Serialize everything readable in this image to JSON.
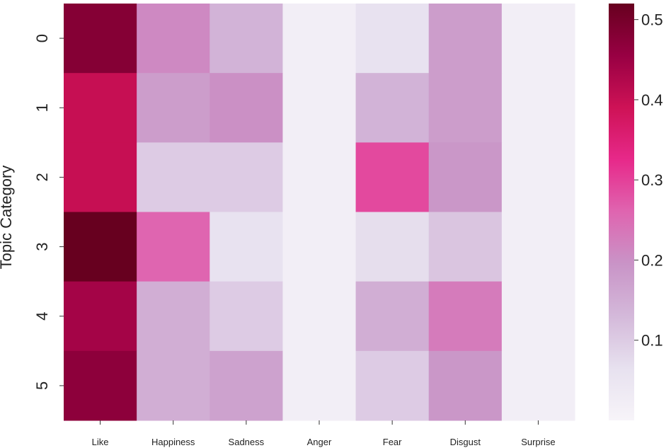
{
  "chart_data": {
    "type": "heatmap",
    "title": "",
    "xlabel": "",
    "ylabel": "Topic Category",
    "x_categories": [
      "Like",
      "Happiness",
      "Sadness",
      "Anger",
      "Fear",
      "Disgust",
      "Surprise"
    ],
    "y_categories": [
      "0",
      "1",
      "2",
      "3",
      "4",
      "5"
    ],
    "values": [
      [
        0.48,
        0.21,
        0.14,
        0.02,
        0.06,
        0.18,
        0.02
      ],
      [
        0.4,
        0.18,
        0.2,
        0.02,
        0.14,
        0.18,
        0.02
      ],
      [
        0.4,
        0.1,
        0.1,
        0.02,
        0.29,
        0.19,
        0.02
      ],
      [
        0.52,
        0.26,
        0.06,
        0.02,
        0.07,
        0.11,
        0.02
      ],
      [
        0.44,
        0.15,
        0.1,
        0.02,
        0.15,
        0.23,
        0.02
      ],
      [
        0.47,
        0.15,
        0.17,
        0.02,
        0.1,
        0.19,
        0.02
      ]
    ],
    "colorbar": {
      "min": 0.0,
      "max": 0.52,
      "ticks": [
        0.1,
        0.2,
        0.3,
        0.4,
        0.5
      ],
      "tick_labels": [
        "0.1",
        "0.2",
        "0.3",
        "0.4",
        "0.5"
      ],
      "colormap": "PuRd",
      "colors": [
        "#f7f4f9",
        "#e7e1ef",
        "#d4b9da",
        "#c994c7",
        "#df65b0",
        "#e7298a",
        "#ce1256",
        "#980043",
        "#67001f"
      ]
    },
    "grid": false
  }
}
